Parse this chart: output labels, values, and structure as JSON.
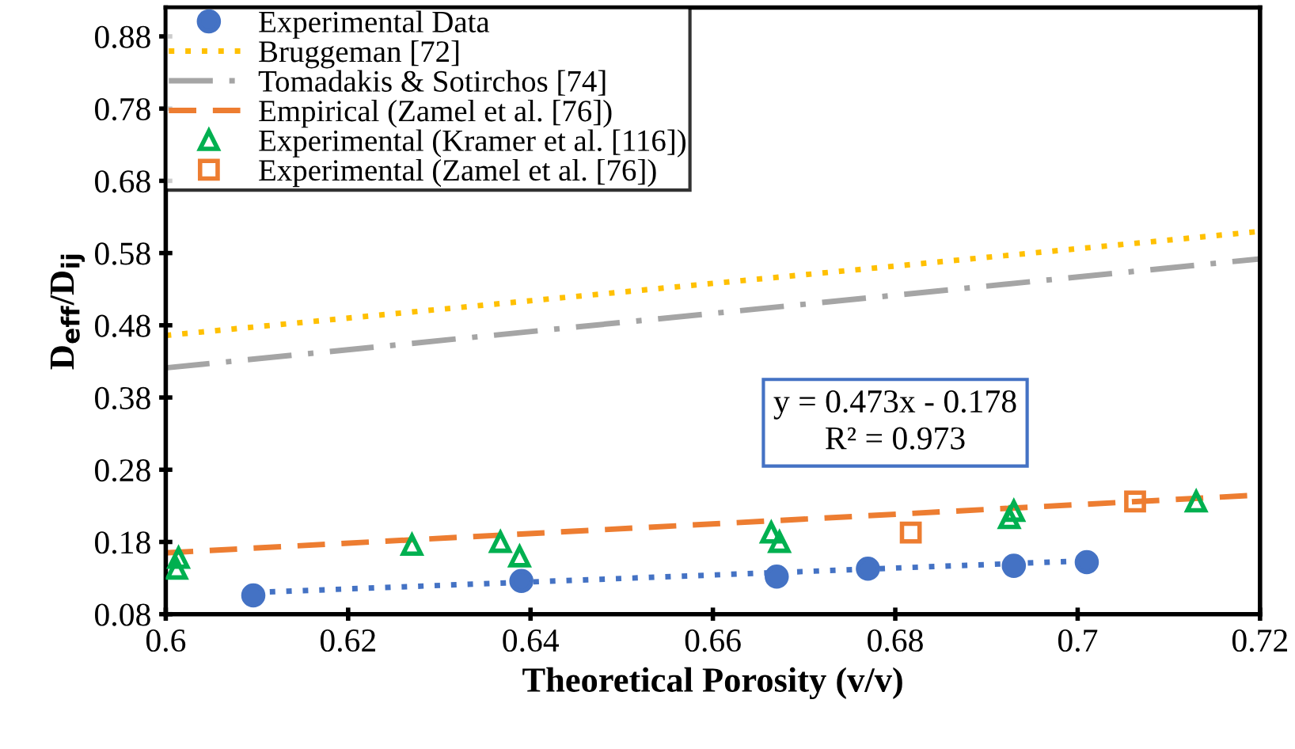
{
  "chart_data": {
    "type": "scatter",
    "xlabel": "Theoretical Porosity (v/v)",
    "ylabel": "D$_{eff}$/D$_{ij}$",
    "xlim": [
      0.6,
      0.72
    ],
    "xticks": [
      0.6,
      0.62,
      0.64,
      0.66,
      0.68,
      0.7,
      0.72
    ],
    "ylim": [
      0.08,
      0.92
    ],
    "yticks": [
      0.08,
      0.18,
      0.28,
      0.38,
      0.48,
      0.58,
      0.68,
      0.78,
      0.88
    ],
    "grid": false,
    "legend": "top left",
    "series": [
      {
        "name": "Experimental Data",
        "marker": "circle",
        "color": "#4472c4",
        "x": [
          0.6096,
          0.639,
          0.667,
          0.677,
          0.693,
          0.701
        ],
        "values": [
          0.106,
          0.126,
          0.132,
          0.143,
          0.147,
          0.152
        ],
        "errors": [
          0.004,
          0.006,
          0.007,
          0.007,
          0.008,
          0.01
        ]
      },
      {
        "type": "line",
        "line_style": "dotted",
        "color": "#4472c4",
        "x": [
          0.6096,
          0.701
        ],
        "values": [
          0.11,
          0.154
        ]
      },
      {
        "name": "Bruggeman [72]",
        "type": "line",
        "line_style": "dotted",
        "color": "#ffc000",
        "x": [
          0.6,
          0.72
        ],
        "values": [
          0.466,
          0.61
        ]
      },
      {
        "name": "Tomadakis & Sotirchos [74]",
        "type": "line",
        "line_style": "dashdot",
        "color": "#a5a5a5",
        "x": [
          0.6,
          0.72
        ],
        "values": [
          0.421,
          0.572
        ]
      },
      {
        "name": "Empirical (Zamel et al. [76])",
        "type": "line",
        "line_style": "dashed",
        "color": "#ed7d31",
        "x": [
          0.6,
          0.72
        ],
        "values": [
          0.165,
          0.245
        ]
      },
      {
        "name": "Experimental (Kramer et al. [116])",
        "marker": "triangle",
        "color": "#00b050",
        "x": [
          0.6012,
          0.6014,
          0.627,
          0.6367,
          0.6388,
          0.6664,
          0.6673,
          0.6925,
          0.693,
          0.713
        ],
        "values": [
          0.143,
          0.158,
          0.176,
          0.18,
          0.16,
          0.193,
          0.18,
          0.213,
          0.223,
          0.236
        ]
      },
      {
        "name": "Experimental (Zamel et al. [76])",
        "marker": "square",
        "color": "#ed7d31",
        "x": [
          0.6817,
          0.7063
        ],
        "values": [
          0.193,
          0.236
        ]
      }
    ],
    "annotations": [
      "y = 0.473x - 0.178\nR² = 0.973"
    ]
  }
}
